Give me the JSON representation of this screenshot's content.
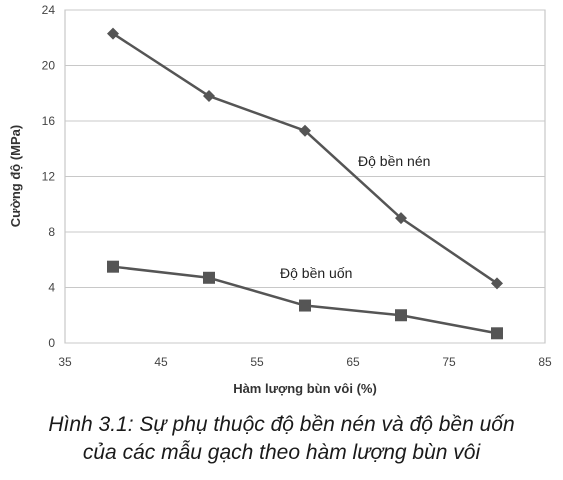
{
  "chart_data": {
    "type": "line",
    "xlabel": "Hàm lượng bùn vôi (%)",
    "ylabel": "Cường độ (MPa)",
    "xlim": [
      35,
      85
    ],
    "ylim": [
      0,
      24
    ],
    "xticks": [
      "35",
      "45",
      "55",
      "65",
      "75",
      "85"
    ],
    "yticks": [
      "0",
      "4",
      "8",
      "12",
      "16",
      "20",
      "24"
    ],
    "grid": "horizontal",
    "series": [
      {
        "name": "Độ bền nén",
        "marker": "diamond",
        "color": "#555555",
        "x": [
          40,
          50,
          60,
          70,
          80
        ],
        "y": [
          22.3,
          17.8,
          15.3,
          9.0,
          4.3
        ]
      },
      {
        "name": "Độ bền uốn",
        "marker": "square",
        "color": "#555555",
        "x": [
          40,
          50,
          60,
          70,
          80
        ],
        "y": [
          5.5,
          4.7,
          2.7,
          2.0,
          0.7
        ]
      }
    ]
  },
  "caption": {
    "line1": "Hình 3.1: Sự phụ thuộc độ bền nén và độ bền uốn",
    "line2": "của các mẫu gạch theo hàm lượng bùn vôi"
  }
}
